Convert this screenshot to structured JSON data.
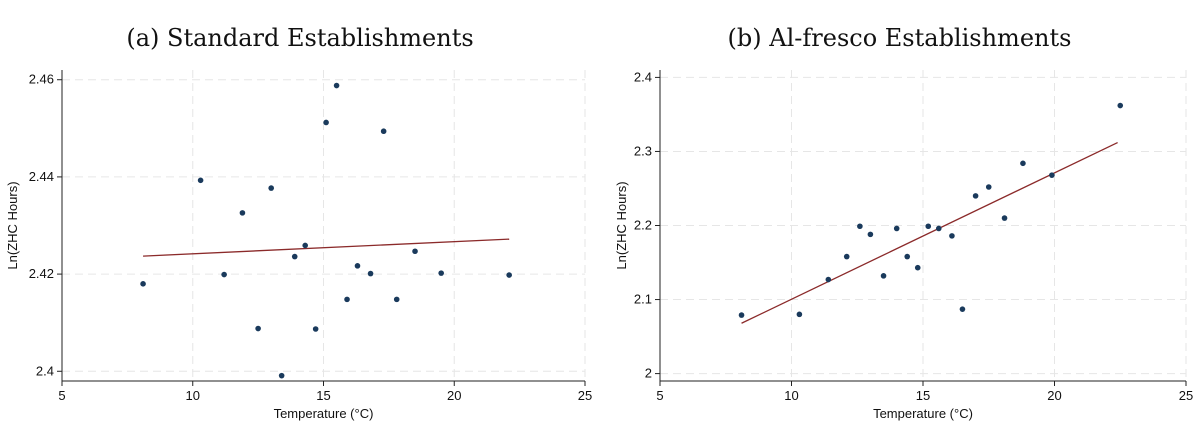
{
  "chart_data": [
    {
      "type": "scatter",
      "title": "(a) Standard Establishments",
      "xlabel": "Temperature (°C)",
      "ylabel": "Ln(ZHC Hours)",
      "xlim": [
        5,
        25
      ],
      "ylim": [
        2.398,
        2.462
      ],
      "xticks": [
        5,
        10,
        15,
        20,
        25
      ],
      "xtick_labels": [
        "5",
        "10",
        "15",
        "20",
        "25"
      ],
      "yticks": [
        2.4,
        2.42,
        2.44,
        2.46
      ],
      "ytick_labels": [
        "2.4",
        "2.42",
        "2.44",
        "2.46"
      ],
      "grid": true,
      "points": [
        {
          "x": 8.1,
          "y": 2.418
        },
        {
          "x": 10.3,
          "y": 2.4393
        },
        {
          "x": 11.2,
          "y": 2.4199
        },
        {
          "x": 11.9,
          "y": 2.4326
        },
        {
          "x": 12.5,
          "y": 2.4088
        },
        {
          "x": 13.0,
          "y": 2.4377
        },
        {
          "x": 13.4,
          "y": 2.3991
        },
        {
          "x": 13.9,
          "y": 2.4236
        },
        {
          "x": 14.3,
          "y": 2.4259
        },
        {
          "x": 14.7,
          "y": 2.4087
        },
        {
          "x": 15.1,
          "y": 2.4512
        },
        {
          "x": 15.5,
          "y": 2.4588
        },
        {
          "x": 15.9,
          "y": 2.4148
        },
        {
          "x": 16.3,
          "y": 2.4217
        },
        {
          "x": 16.8,
          "y": 2.4201
        },
        {
          "x": 17.3,
          "y": 2.4494
        },
        {
          "x": 17.8,
          "y": 2.4148
        },
        {
          "x": 18.5,
          "y": 2.4247
        },
        {
          "x": 19.5,
          "y": 2.4202
        },
        {
          "x": 22.1,
          "y": 2.4198
        }
      ],
      "fit_line": {
        "x": [
          8.1,
          22.1
        ],
        "y": [
          2.4237,
          2.4272
        ]
      },
      "point_color": "#1a3a5c",
      "line_color": "#8b2a2a"
    },
    {
      "type": "scatter",
      "title": "(b) Al-fresco Establishments",
      "xlabel": "Temperature (°C)",
      "ylabel": "Ln(ZHC Hours)",
      "xlim": [
        5,
        25
      ],
      "ylim": [
        1.99,
        2.41
      ],
      "xticks": [
        5,
        10,
        15,
        20,
        25
      ],
      "xtick_labels": [
        "5",
        "10",
        "15",
        "20",
        "25"
      ],
      "yticks": [
        2.0,
        2.1,
        2.2,
        2.3,
        2.4
      ],
      "ytick_labels": [
        "2",
        "2.1",
        "2.2",
        "2.3",
        "2.4"
      ],
      "grid": true,
      "points": [
        {
          "x": 8.1,
          "y": 2.079
        },
        {
          "x": 10.3,
          "y": 2.08
        },
        {
          "x": 11.4,
          "y": 2.127
        },
        {
          "x": 12.1,
          "y": 2.158
        },
        {
          "x": 12.6,
          "y": 2.199
        },
        {
          "x": 13.0,
          "y": 2.188
        },
        {
          "x": 13.5,
          "y": 2.132
        },
        {
          "x": 14.0,
          "y": 2.196
        },
        {
          "x": 14.4,
          "y": 2.158
        },
        {
          "x": 14.8,
          "y": 2.143
        },
        {
          "x": 15.2,
          "y": 2.199
        },
        {
          "x": 15.6,
          "y": 2.196
        },
        {
          "x": 16.1,
          "y": 2.186
        },
        {
          "x": 16.5,
          "y": 2.087
        },
        {
          "x": 17.0,
          "y": 2.24
        },
        {
          "x": 17.5,
          "y": 2.252
        },
        {
          "x": 18.1,
          "y": 2.21
        },
        {
          "x": 18.8,
          "y": 2.284
        },
        {
          "x": 19.9,
          "y": 2.268
        },
        {
          "x": 22.5,
          "y": 2.362
        }
      ],
      "fit_line": {
        "x": [
          8.1,
          22.4
        ],
        "y": [
          2.068,
          2.312
        ]
      },
      "point_color": "#1a3a5c",
      "line_color": "#8b2a2a"
    }
  ]
}
